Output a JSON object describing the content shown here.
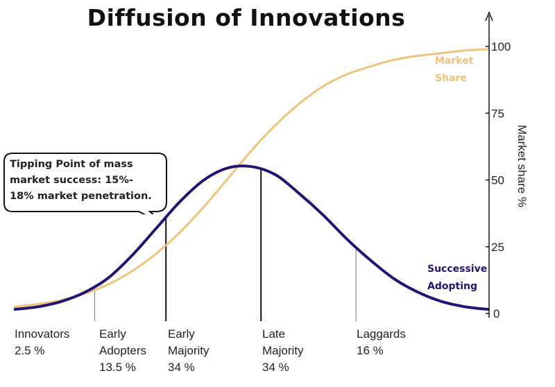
{
  "chart_data": {
    "type": "line",
    "title": "Diffusion of Innovations",
    "ylabel": "Market share %",
    "ylim": [
      0,
      100
    ],
    "yticks": [
      0,
      25,
      50,
      75,
      100
    ],
    "grid": false,
    "series": [
      {
        "name": "Market Share",
        "label_lines": [
          "Market",
          "Share"
        ],
        "color": "#f0c27a",
        "x": [
          0,
          5,
          10,
          15,
          20,
          25,
          30,
          35,
          40,
          45,
          50,
          55,
          60,
          65,
          70,
          75,
          80,
          85,
          90,
          95,
          100
        ],
        "y": [
          2.5,
          3.5,
          5,
          7.5,
          11,
          16,
          22.5,
          30.5,
          40,
          50.5,
          61,
          70.5,
          78.5,
          85,
          89.5,
          92.5,
          95,
          96.5,
          97.5,
          98.5,
          99
        ]
      },
      {
        "name": "Successive Adopting",
        "label_lines": [
          "Successive",
          "Adopting"
        ],
        "color": "#221477",
        "x": [
          0,
          5,
          10,
          15,
          20,
          25,
          30,
          35,
          40,
          45,
          50,
          55,
          60,
          65,
          70,
          75,
          80,
          85,
          90,
          95,
          100
        ],
        "y": [
          1.5,
          2.5,
          4.5,
          8,
          13.5,
          22,
          32,
          42,
          50,
          54.5,
          55,
          52,
          45,
          37,
          28,
          20,
          13,
          8,
          4.5,
          2.5,
          1.5
        ]
      }
    ],
    "dividers": [
      17,
      32,
      52,
      72
    ],
    "categories": [
      {
        "name": [
          "Innovators"
        ],
        "share": "2.5 %"
      },
      {
        "name": [
          "Early",
          "Adopters"
        ],
        "share": "13.5 %"
      },
      {
        "name": [
          "Early",
          "Majority"
        ],
        "share": "34 %"
      },
      {
        "name": [
          "Late",
          "Majority"
        ],
        "share": "34 %"
      },
      {
        "name": [
          "Laggards"
        ],
        "share": "16 %"
      }
    ],
    "annotation": {
      "lines": [
        "Tipping Point of mass",
        "market success: 15%-",
        "18% market penetration."
      ]
    }
  }
}
